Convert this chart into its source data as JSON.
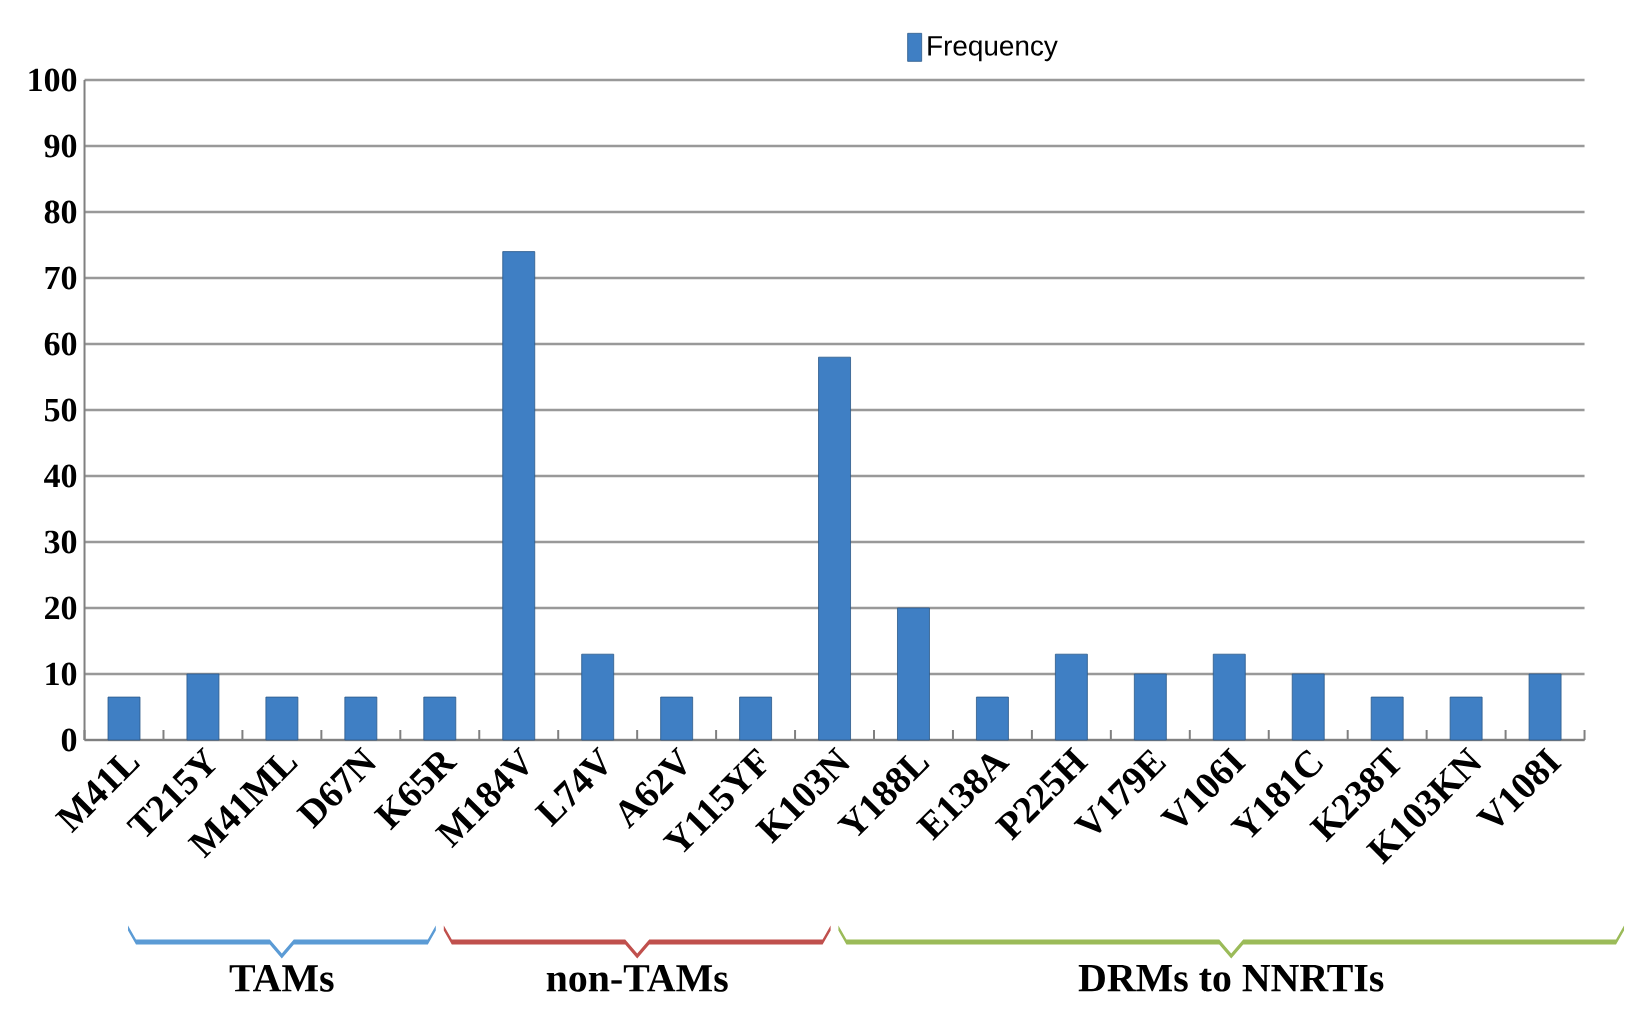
{
  "chart_data": {
    "type": "bar",
    "categories": [
      "M41L",
      "T215Y",
      "M41ML",
      "D67N",
      "K65R",
      "M184V",
      "L74V",
      "A62V",
      "Y115YF",
      "K103N",
      "Y188L",
      "E138A",
      "P225H",
      "V179E",
      "V106I",
      "Y181C",
      "K238T",
      "K103KN",
      "V108I"
    ],
    "series": [
      {
        "name": "Frequency",
        "color": "#3f7fc4",
        "values": [
          6.5,
          10,
          6.5,
          6.5,
          6.5,
          74,
          13,
          6.5,
          6.5,
          58,
          20,
          6.5,
          13,
          10,
          13,
          10,
          6.5,
          6.5,
          10
        ]
      }
    ],
    "ylim": [
      0,
      100
    ],
    "yticks": [
      0,
      10,
      20,
      30,
      40,
      50,
      60,
      70,
      80,
      90,
      100
    ],
    "grid": "y",
    "legend": "top",
    "annotations": [
      "TAMs",
      "non-TAMs",
      "DRMs to NNRTIs"
    ]
  }
}
